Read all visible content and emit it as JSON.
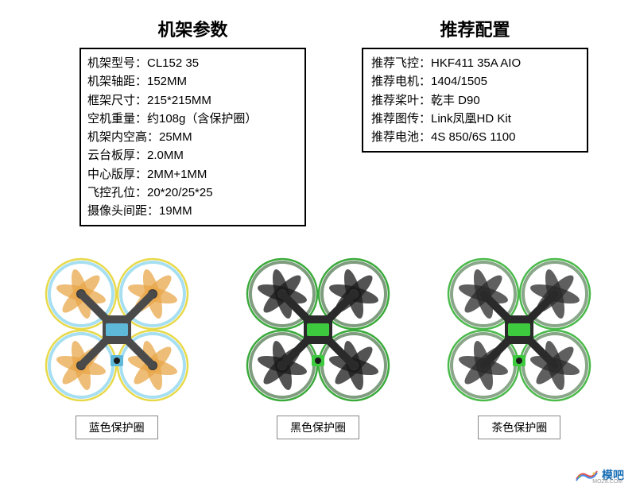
{
  "left_column": {
    "title": "机架参数",
    "specs": [
      {
        "label": "机架型号：",
        "value": "CL152 35"
      },
      {
        "label": "机架轴距：",
        "value": "152MM"
      },
      {
        "label": "框架尺寸：",
        "value": "215*215MM"
      },
      {
        "label": "空机重量：",
        "value": "约108g（含保护圈）"
      },
      {
        "label": "机架内空高：",
        "value": "25MM"
      },
      {
        "label": "云台板厚：",
        "value": "2.0MM"
      },
      {
        "label": "中心版厚：",
        "value": "2MM+1MM"
      },
      {
        "label": "飞控孔位：",
        "value": "20*20/25*25"
      },
      {
        "label": "摄像头间距：",
        "value": "19MM"
      }
    ]
  },
  "right_column": {
    "title": "推荐配置",
    "specs": [
      {
        "label": "推荐飞控：",
        "value": "HKF411 35A AIO"
      },
      {
        "label": "推荐电机：",
        "value": "1404/1505"
      },
      {
        "label": "推荐桨叶：",
        "value": "乾丰 D90"
      },
      {
        "label": "推荐图传：",
        "value": "Link凤凰HD Kit"
      },
      {
        "label": "推荐电池：",
        "value": "4S 850/6S 1100"
      }
    ]
  },
  "drones": [
    {
      "label": "蓝色保护圈",
      "guard_color": "#6bc9e8",
      "guard_outer": "#e8d94a",
      "prop_color": "#e8a74a",
      "body_color": "#4a4a4a",
      "accent_color": "#5eb8d8"
    },
    {
      "label": "黑色保护圈",
      "guard_color": "#2a5a2a",
      "guard_outer": "#3aaa3a",
      "prop_color": "#1a1a1a",
      "body_color": "#2a2a2a",
      "accent_color": "#3eca3e"
    },
    {
      "label": "茶色保护圈",
      "guard_color": "#3a6a3a",
      "guard_outer": "#4aba4a",
      "prop_color": "#2a2a2a",
      "body_color": "#2a2a2a",
      "accent_color": "#3eca3e"
    }
  ],
  "watermark": {
    "text": "模吧",
    "sub": "MOZ8.COM",
    "colors": [
      "#e8544a",
      "#5ab85a",
      "#4a8ae8",
      "#e8c84a"
    ]
  },
  "styling": {
    "bg_color": "#ffffff",
    "border_color": "#000000",
    "label_border": "#888888",
    "text_color": "#000000",
    "title_fontsize": 22,
    "spec_fontsize": 15,
    "label_fontsize": 14
  }
}
